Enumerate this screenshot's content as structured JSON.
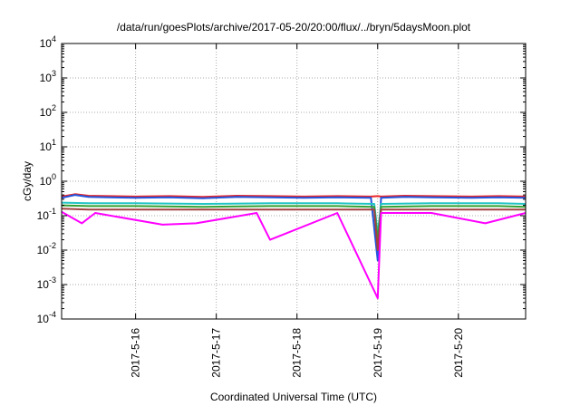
{
  "chart_data": {
    "type": "line",
    "title": "/data/run/goesPlots/archive/2017-05-20/20:00/flux/../bryn/5daysMoon.plot",
    "xlabel": "Coordinated Universal Time (UTC)",
    "ylabel": "cGy/day",
    "y_scale": "log",
    "ylim": [
      0.0001,
      10000
    ],
    "y_ticks": [
      {
        "value": 0.0001,
        "base": "10",
        "exp": "-4"
      },
      {
        "value": 0.001,
        "base": "10",
        "exp": "-3"
      },
      {
        "value": 0.01,
        "base": "10",
        "exp": "-2"
      },
      {
        "value": 0.1,
        "base": "10",
        "exp": "-1"
      },
      {
        "value": 1,
        "base": "10",
        "exp": "0"
      },
      {
        "value": 10,
        "base": "10",
        "exp": "1"
      },
      {
        "value": 100,
        "base": "10",
        "exp": "2"
      },
      {
        "value": 1000,
        "base": "10",
        "exp": "3"
      },
      {
        "value": 10000,
        "base": "10",
        "exp": "4"
      }
    ],
    "xlim": [
      "2017-05-15 02:00",
      "2017-05-20 20:00"
    ],
    "x_ticks": [
      {
        "value": "2017-05-16 00:00",
        "label": "2017-5-16"
      },
      {
        "value": "2017-05-17 00:00",
        "label": "2017-5-17"
      },
      {
        "value": "2017-05-18 00:00",
        "label": "2017-5-18"
      },
      {
        "value": "2017-05-19 00:00",
        "label": "2017-5-19"
      },
      {
        "value": "2017-05-20 00:00",
        "label": "2017-5-20"
      }
    ],
    "grid": true,
    "series": [
      {
        "color": "#e8262a",
        "values": [
          [
            "2017-05-15 02:00",
            0.36
          ],
          [
            "2017-05-15 06:00",
            0.42
          ],
          [
            "2017-05-15 10:00",
            0.38
          ],
          [
            "2017-05-15 16:00",
            0.37
          ],
          [
            "2017-05-16 00:00",
            0.36
          ],
          [
            "2017-05-16 10:00",
            0.37
          ],
          [
            "2017-05-16 20:00",
            0.35
          ],
          [
            "2017-05-17 06:00",
            0.38
          ],
          [
            "2017-05-17 16:00",
            0.37
          ],
          [
            "2017-05-18 02:00",
            0.36
          ],
          [
            "2017-05-18 12:00",
            0.37
          ],
          [
            "2017-05-18 22:00",
            0.36
          ],
          [
            "2017-05-19 00:00",
            0.37
          ],
          [
            "2017-05-19 01:00",
            0.36
          ],
          [
            "2017-05-19 08:00",
            0.38
          ],
          [
            "2017-05-19 16:00",
            0.37
          ],
          [
            "2017-05-20 04:00",
            0.36
          ],
          [
            "2017-05-20 12:00",
            0.37
          ],
          [
            "2017-05-20 20:00",
            0.36
          ]
        ]
      },
      {
        "color": "#2255dd",
        "values": [
          [
            "2017-05-15 02:00",
            0.33
          ],
          [
            "2017-05-15 06:00",
            0.4
          ],
          [
            "2017-05-15 10:00",
            0.35
          ],
          [
            "2017-05-15 16:00",
            0.34
          ],
          [
            "2017-05-16 00:00",
            0.33
          ],
          [
            "2017-05-16 10:00",
            0.34
          ],
          [
            "2017-05-16 20:00",
            0.32
          ],
          [
            "2017-05-17 06:00",
            0.35
          ],
          [
            "2017-05-17 16:00",
            0.34
          ],
          [
            "2017-05-18 02:00",
            0.33
          ],
          [
            "2017-05-18 12:00",
            0.34
          ],
          [
            "2017-05-18 22:00",
            0.33
          ],
          [
            "2017-05-19 00:00",
            0.005
          ],
          [
            "2017-05-19 01:00",
            0.33
          ],
          [
            "2017-05-19 08:00",
            0.35
          ],
          [
            "2017-05-19 16:00",
            0.34
          ],
          [
            "2017-05-20 04:00",
            0.33
          ],
          [
            "2017-05-20 12:00",
            0.34
          ],
          [
            "2017-05-20 20:00",
            0.33
          ]
        ]
      },
      {
        "color": "#22c4c4",
        "values": [
          [
            "2017-05-15 02:00",
            0.24
          ],
          [
            "2017-05-15 10:00",
            0.23
          ],
          [
            "2017-05-16 00:00",
            0.23
          ],
          [
            "2017-05-16 20:00",
            0.22
          ],
          [
            "2017-05-17 16:00",
            0.23
          ],
          [
            "2017-05-18 12:00",
            0.23
          ],
          [
            "2017-05-18 23:00",
            0.22
          ],
          [
            "2017-05-19 00:00",
            0.03
          ],
          [
            "2017-05-19 01:00",
            0.22
          ],
          [
            "2017-05-19 16:00",
            0.23
          ],
          [
            "2017-05-20 12:00",
            0.23
          ],
          [
            "2017-05-20 20:00",
            0.22
          ]
        ]
      },
      {
        "color": "#33a033",
        "values": [
          [
            "2017-05-15 02:00",
            0.2
          ],
          [
            "2017-05-15 10:00",
            0.19
          ],
          [
            "2017-05-16 00:00",
            0.19
          ],
          [
            "2017-05-16 20:00",
            0.18
          ],
          [
            "2017-05-17 16:00",
            0.19
          ],
          [
            "2017-05-18 12:00",
            0.19
          ],
          [
            "2017-05-18 23:00",
            0.18
          ],
          [
            "2017-05-19 00:00",
            0.02
          ],
          [
            "2017-05-19 01:00",
            0.18
          ],
          [
            "2017-05-19 16:00",
            0.19
          ],
          [
            "2017-05-20 12:00",
            0.19
          ],
          [
            "2017-05-20 20:00",
            0.18
          ]
        ]
      },
      {
        "color": "#a04040",
        "values": [
          [
            "2017-05-15 02:00",
            0.16
          ],
          [
            "2017-05-15 10:00",
            0.15
          ],
          [
            "2017-05-16 00:00",
            0.15
          ],
          [
            "2017-05-16 20:00",
            0.15
          ],
          [
            "2017-05-17 16:00",
            0.15
          ],
          [
            "2017-05-18 12:00",
            0.15
          ],
          [
            "2017-05-18 23:00",
            0.15
          ],
          [
            "2017-05-19 00:00",
            0.01
          ],
          [
            "2017-05-19 01:00",
            0.15
          ],
          [
            "2017-05-19 16:00",
            0.15
          ],
          [
            "2017-05-20 12:00",
            0.15
          ],
          [
            "2017-05-20 20:00",
            0.15
          ]
        ]
      },
      {
        "color": "#ff00ff",
        "values": [
          [
            "2017-05-15 02:00",
            0.13
          ],
          [
            "2017-05-15 08:00",
            0.06
          ],
          [
            "2017-05-15 12:00",
            0.12
          ],
          [
            "2017-05-16 08:00",
            0.055
          ],
          [
            "2017-05-16 18:00",
            0.06
          ],
          [
            "2017-05-17 12:00",
            0.12
          ],
          [
            "2017-05-17 16:00",
            0.02
          ],
          [
            "2017-05-18 12:00",
            0.12
          ],
          [
            "2017-05-19 00:00",
            0.0004
          ],
          [
            "2017-05-19 01:00",
            0.12
          ],
          [
            "2017-05-19 16:00",
            0.12
          ],
          [
            "2017-05-20 08:00",
            0.06
          ],
          [
            "2017-05-20 20:00",
            0.12
          ]
        ]
      }
    ]
  }
}
